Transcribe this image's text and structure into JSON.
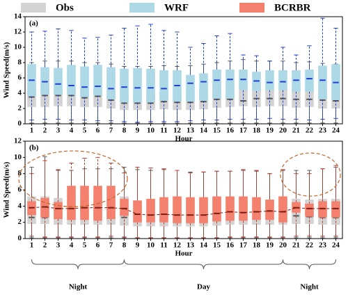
{
  "chart_data": [
    {
      "type": "box",
      "title": "(a)",
      "xlabel": "Hour",
      "ylabel": "Wind Speed(m/s)",
      "categories": [
        1,
        2,
        3,
        4,
        5,
        6,
        7,
        8,
        9,
        10,
        11,
        12,
        13,
        14,
        15,
        16,
        17,
        18,
        19,
        20,
        21,
        22,
        23,
        24
      ],
      "ylim": [
        0,
        14
      ],
      "yticks": [
        0,
        2,
        4,
        6,
        8,
        10,
        12,
        14
      ],
      "series": [
        {
          "name": "Obs",
          "color": "#d3d3d3",
          "whisker_color": "#555555",
          "median_color": "#555555",
          "whislo": [
            0.1,
            0.1,
            0.1,
            0.1,
            0.1,
            0.1,
            0.1,
            0.1,
            0.1,
            0.1,
            0.1,
            0.1,
            0.1,
            0.1,
            0.1,
            0.1,
            0.1,
            0.1,
            0.1,
            0.1,
            0.1,
            0.1,
            0.1,
            0.1
          ],
          "q1": [
            2.2,
            2.2,
            2.3,
            2.3,
            2.2,
            2.2,
            2.0,
            1.8,
            1.8,
            1.8,
            1.9,
            1.8,
            1.8,
            1.9,
            2.1,
            2.2,
            2.3,
            2.2,
            2.3,
            2.3,
            2.1,
            2.2,
            2.0,
            2.0
          ],
          "med": [
            3.5,
            3.7,
            3.7,
            3.7,
            3.4,
            3.6,
            3.1,
            2.7,
            2.7,
            2.7,
            2.9,
            2.8,
            2.8,
            2.9,
            3.2,
            3.2,
            3.0,
            3.3,
            3.3,
            3.3,
            3.2,
            3.2,
            3.1,
            3.0
          ],
          "q3": [
            4.5,
            4.6,
            4.6,
            4.6,
            4.4,
            4.5,
            4.3,
            4.1,
            4.1,
            4.1,
            4.2,
            4.1,
            4.2,
            4.3,
            4.5,
            4.6,
            4.8,
            4.7,
            4.8,
            4.8,
            4.6,
            4.7,
            4.5,
            4.4
          ],
          "whishi": [
            8.0,
            8.2,
            8.2,
            8.2,
            8.0,
            8.0,
            7.8,
            7.5,
            7.5,
            7.5,
            7.6,
            7.5,
            7.6,
            7.8,
            8.0,
            8.2,
            8.4,
            8.2,
            8.2,
            8.2,
            8.0,
            8.1,
            7.9,
            7.8
          ]
        },
        {
          "name": "WRF",
          "color": "#add8e6",
          "whisker_color": "#1f3fd1",
          "median_color": "#1f3fd1",
          "whislo": [
            0.5,
            0.6,
            0.6,
            0.5,
            0.5,
            0.4,
            0.4,
            0.3,
            0.2,
            0.3,
            0.3,
            0.3,
            0.4,
            0.5,
            0.5,
            0.6,
            0.6,
            0.6,
            0.7,
            0.6,
            0.6,
            0.5,
            0.6,
            0.7
          ],
          "q1": [
            3.6,
            3.8,
            3.8,
            3.8,
            3.5,
            3.7,
            3.2,
            2.8,
            2.8,
            2.8,
            3.0,
            2.9,
            2.9,
            3.0,
            3.3,
            3.3,
            4.4,
            4.3,
            4.4,
            4.4,
            4.2,
            4.2,
            3.2,
            3.1
          ],
          "med": [
            5.7,
            5.5,
            5.2,
            5.0,
            4.8,
            4.9,
            4.6,
            4.8,
            4.7,
            4.7,
            4.6,
            5.0,
            5.3,
            5.5,
            5.7,
            5.8,
            5.8,
            5.6,
            5.4,
            5.5,
            5.7,
            5.9,
            5.7,
            5.4
          ],
          "q3": [
            7.8,
            7.4,
            7.3,
            7.7,
            7.5,
            7.7,
            7.4,
            7.2,
            7.3,
            7.2,
            7.0,
            7.0,
            6.4,
            6.6,
            7.1,
            7.1,
            7.1,
            6.8,
            7.0,
            7.0,
            7.0,
            7.1,
            7.6,
            7.8
          ],
          "whishi": [
            12.0,
            12.1,
            12.4,
            12.2,
            11.2,
            11.3,
            11.6,
            12.5,
            12.8,
            13.0,
            12.2,
            12.0,
            10.0,
            10.5,
            11.5,
            11.8,
            9.0,
            8.9,
            8.2,
            10.0,
            9.0,
            10.2,
            13.8,
            12.5
          ]
        }
      ]
    },
    {
      "type": "box",
      "title": "(b)",
      "xlabel": "Hour",
      "ylabel": "Wind Speed(m/s)",
      "categories": [
        1,
        2,
        3,
        4,
        5,
        6,
        7,
        8,
        9,
        10,
        11,
        12,
        13,
        14,
        15,
        16,
        17,
        18,
        19,
        20,
        21,
        22,
        23,
        24
      ],
      "ylim": [
        0,
        12
      ],
      "yticks": [
        0,
        2,
        4,
        6,
        8,
        10,
        12
      ],
      "spans": [
        {
          "label": "Night",
          "start": 1,
          "end": 8
        },
        {
          "label": "Day",
          "start": 8,
          "end": 20
        },
        {
          "label": "Night",
          "start": 20,
          "end": 24
        }
      ],
      "series": [
        {
          "name": "Obs",
          "color": "#d3d3d3",
          "whisker_color": "#555555",
          "median_color": "#555555",
          "whislo": [
            0.1,
            0.1,
            0.1,
            0.1,
            0.1,
            0.1,
            0.1,
            0.1,
            0.1,
            0.1,
            0.1,
            0.1,
            0.1,
            0.1,
            0.1,
            0.1,
            0.1,
            0.1,
            0.1,
            0.1,
            0.1,
            0.1,
            0.1,
            0.1
          ],
          "q1": [
            1.8,
            1.8,
            1.7,
            1.7,
            1.7,
            1.7,
            1.7,
            1.6,
            1.5,
            1.5,
            1.5,
            1.5,
            1.5,
            1.5,
            1.6,
            1.7,
            1.7,
            1.7,
            1.7,
            1.7,
            1.8,
            1.8,
            1.7,
            1.7
          ],
          "med": [
            2.6,
            2.6,
            2.5,
            2.5,
            2.5,
            2.5,
            2.5,
            2.6,
            2.3,
            2.3,
            2.4,
            2.4,
            2.4,
            2.4,
            2.6,
            2.8,
            2.8,
            2.8,
            2.8,
            2.7,
            2.8,
            2.7,
            2.6,
            2.6
          ],
          "q3": [
            5.2,
            5.2,
            5.0,
            5.0,
            5.0,
            5.0,
            5.0,
            5.2,
            4.6,
            4.8,
            5.0,
            5.1,
            5.0,
            5.0,
            5.1,
            5.1,
            5.1,
            5.0,
            4.8,
            5.1,
            4.9,
            4.8,
            4.9,
            4.9
          ],
          "whishi": [
            8.8,
            10.1,
            8.4,
            8.4,
            8.6,
            8.6,
            8.6,
            8.8,
            8.5,
            8.4,
            8.5,
            8.4,
            8.2,
            8.2,
            8.3,
            8.3,
            8.4,
            8.3,
            8.0,
            8.4,
            8.4,
            8.4,
            8.6,
            8.8
          ]
        },
        {
          "name": "BCRBR",
          "color": "#f4806e",
          "whisker_color": "#c0392b",
          "median_color": "#7a1c12",
          "whislo": [
            0.3,
            0.2,
            0.2,
            0.2,
            0.2,
            0.2,
            0.3,
            0.2,
            0.1,
            0.1,
            0.1,
            0.1,
            0.1,
            0.1,
            0.1,
            0.2,
            0.2,
            0.2,
            0.2,
            0.2,
            0.3,
            0.3,
            0.3,
            0.3
          ],
          "q1": [
            2.9,
            2.6,
            2.4,
            2.3,
            2.3,
            2.2,
            2.4,
            2.8,
            2.0,
            2.0,
            2.0,
            1.9,
            1.9,
            1.9,
            2.1,
            2.2,
            2.2,
            2.3,
            2.3,
            2.0,
            3.2,
            2.7,
            2.6,
            2.6
          ],
          "med": [
            3.8,
            3.9,
            3.7,
            3.7,
            3.8,
            3.8,
            3.8,
            3.7,
            3.0,
            2.9,
            3.0,
            2.9,
            2.9,
            2.9,
            3.1,
            3.3,
            3.2,
            3.3,
            3.4,
            3.3,
            3.8,
            3.7,
            3.7,
            3.7
          ],
          "q3": [
            4.6,
            5.0,
            4.5,
            6.5,
            6.5,
            6.5,
            6.5,
            4.9,
            4.7,
            4.9,
            5.1,
            5.2,
            5.1,
            5.1,
            5.2,
            5.2,
            5.2,
            5.1,
            4.8,
            5.2,
            4.5,
            4.3,
            4.6,
            4.6
          ],
          "whishi": [
            8.0,
            9.6,
            8.5,
            9.3,
            9.9,
            10.0,
            9.3,
            8.1,
            8.8,
            8.7,
            8.6,
            8.4,
            8.1,
            8.2,
            8.3,
            8.3,
            8.5,
            8.4,
            8.0,
            8.5,
            8.0,
            8.0,
            8.6,
            9.0
          ]
        }
      ]
    }
  ]
}
